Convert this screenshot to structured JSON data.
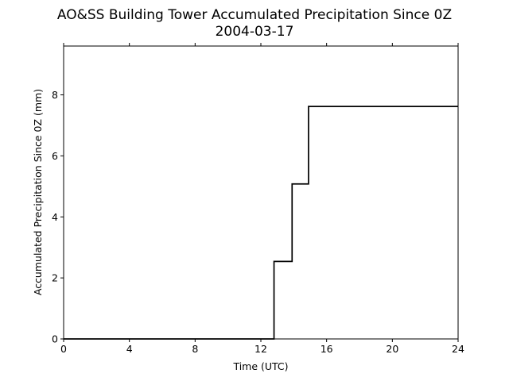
{
  "chart_data": {
    "type": "line",
    "step": "post",
    "title": "AO&SS Building Tower Accumulated Precipitation Since 0Z",
    "subtitle": "2004-03-17",
    "xlabel": "Time (UTC)",
    "ylabel": "Accumulated Precipitation Since 0Z (mm)",
    "xlim": [
      0,
      24
    ],
    "ylim": [
      0,
      9.6
    ],
    "xticks": [
      0,
      4,
      8,
      12,
      16,
      20,
      24
    ],
    "yticks": [
      0,
      2,
      4,
      6,
      8
    ],
    "grid": false,
    "line_color": "#000000",
    "series": [
      {
        "x": [
          0,
          12.8,
          13.9,
          14.9,
          24
        ],
        "y": [
          0,
          2.54,
          5.08,
          7.62,
          7.62
        ]
      }
    ]
  }
}
